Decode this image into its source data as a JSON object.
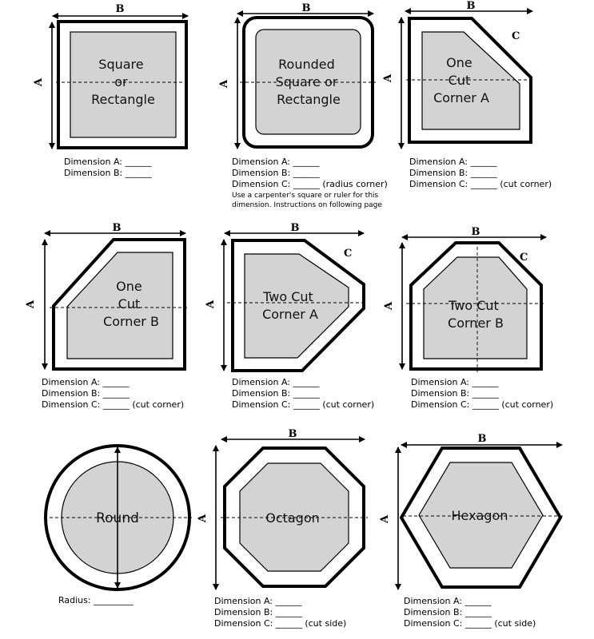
{
  "labels": {
    "a": "A",
    "b": "B",
    "c": "C"
  },
  "shapes": [
    {
      "name": "Square or Rectangle",
      "lines": [
        "Square",
        "or",
        "Rectangle"
      ],
      "dims": [
        "Dimension A: ______",
        "Dimension B: ______"
      ],
      "note": []
    },
    {
      "name": "Rounded Square or Rectangle",
      "lines": [
        "Rounded",
        "Square or",
        "Rectangle"
      ],
      "dims": [
        "Dimension A: ______",
        "Dimension B: ______",
        "Dimension C: ______ (radius corner)"
      ],
      "note": [
        "Use a carpenter's square or ruler for this",
        "dimension. Instructions on following page"
      ]
    },
    {
      "name": "One Cut Corner A",
      "lines": [
        "One",
        "Cut",
        "Corner A"
      ],
      "dims": [
        "Dimension A: ______",
        "Dimension B: ______",
        "Dimension C: ______ (cut corner)"
      ],
      "note": []
    },
    {
      "name": "One Cut Corner B",
      "lines": [
        "One",
        "Cut",
        "Corner B"
      ],
      "dims": [
        "Dimension A: ______",
        "Dimension B: ______",
        "Dimension C: ______ (cut corner)"
      ],
      "note": []
    },
    {
      "name": "Two Cut Corner A",
      "lines": [
        "Two Cut",
        "Corner A"
      ],
      "dims": [
        "Dimension A: ______",
        "Dimension B: ______",
        "Dimension C: ______ (cut corner)"
      ],
      "note": []
    },
    {
      "name": "Two Cut Corner B",
      "lines": [
        "Two Cut",
        "Corner B"
      ],
      "dims": [
        "Dimension A: ______",
        "Dimension B: ______",
        "Dimension C: ______ (cut corner)"
      ],
      "note": []
    },
    {
      "name": "Round",
      "lines": [
        "Round"
      ],
      "dims": [
        "Radius: _________"
      ],
      "note": []
    },
    {
      "name": "Octagon",
      "lines": [
        "Octagon"
      ],
      "dims": [
        "Dimension A: ______",
        "Dimension B: ______",
        "Dimension C: ______ (cut side)"
      ],
      "note": []
    },
    {
      "name": "Hexagon",
      "lines": [
        "Hexagon"
      ],
      "dims": [
        "Dimension A: ______",
        "Dimension B: ______",
        "Dimension C: ______ (cut side)"
      ],
      "note": []
    }
  ]
}
